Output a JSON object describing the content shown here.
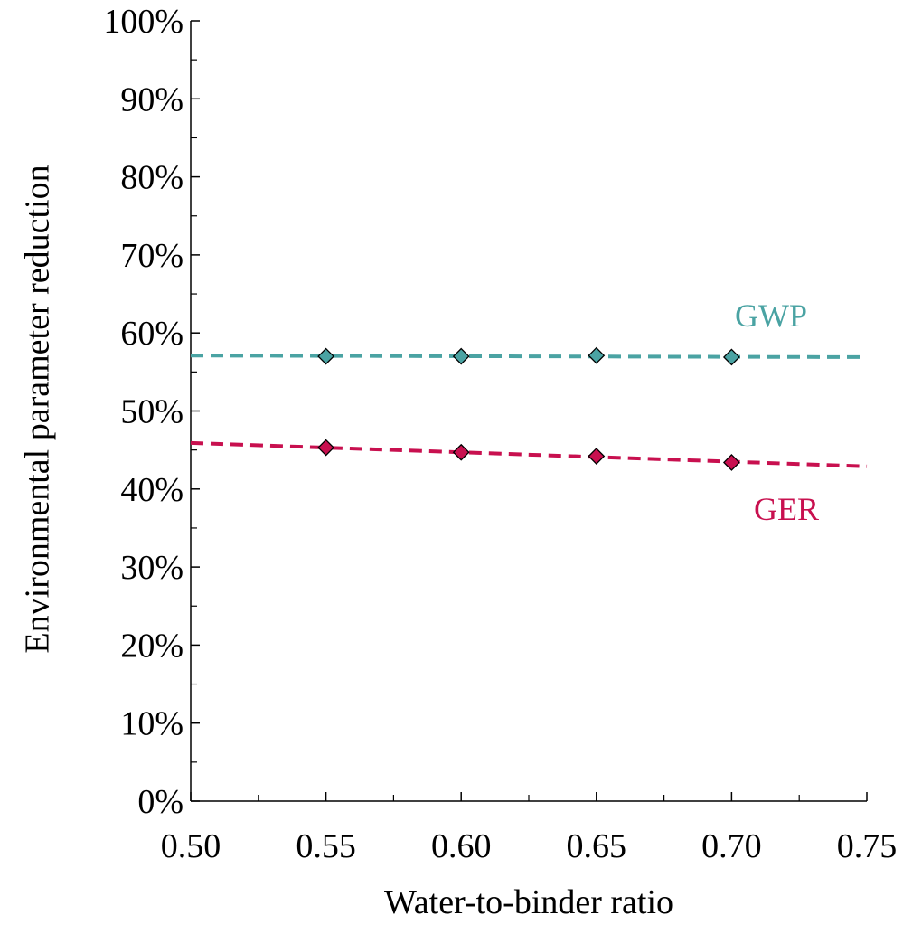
{
  "chart_data": {
    "type": "scatter",
    "title": "",
    "xlabel": "Water-to-binder ratio",
    "ylabel": "Environmental parameter reduction",
    "xlim": [
      0.5,
      0.75
    ],
    "ylim": [
      0,
      1
    ],
    "x_ticks": [
      0.5,
      0.55,
      0.6,
      0.65,
      0.7,
      0.75
    ],
    "x_tick_labels": [
      "0.50",
      "0.55",
      "0.60",
      "0.65",
      "0.70",
      "0.75"
    ],
    "y_ticks": [
      0,
      0.1,
      0.2,
      0.3,
      0.4,
      0.5,
      0.6,
      0.7,
      0.8,
      0.9,
      1.0
    ],
    "y_tick_labels": [
      "0%",
      "10%",
      "20%",
      "30%",
      "40%",
      "50%",
      "60%",
      "70%",
      "80%",
      "90%",
      "100%"
    ],
    "grid": false,
    "legend": "inline labels",
    "series": [
      {
        "name": "GWP",
        "color": "#4aa3a3",
        "marker": "diamond",
        "x": [
          0.55,
          0.6,
          0.65,
          0.7
        ],
        "y": [
          0.57,
          0.57,
          0.571,
          0.569
        ],
        "trendline": {
          "style": "dashed",
          "x": [
            0.5,
            0.75
          ],
          "y": [
            0.571,
            0.569
          ]
        }
      },
      {
        "name": "GER",
        "color": "#c8104f",
        "marker": "diamond",
        "x": [
          0.55,
          0.6,
          0.65,
          0.7
        ],
        "y": [
          0.453,
          0.447,
          0.442,
          0.434
        ],
        "trendline": {
          "style": "dashed",
          "x": [
            0.5,
            0.75
          ],
          "y": [
            0.459,
            0.429
          ]
        }
      }
    ]
  }
}
